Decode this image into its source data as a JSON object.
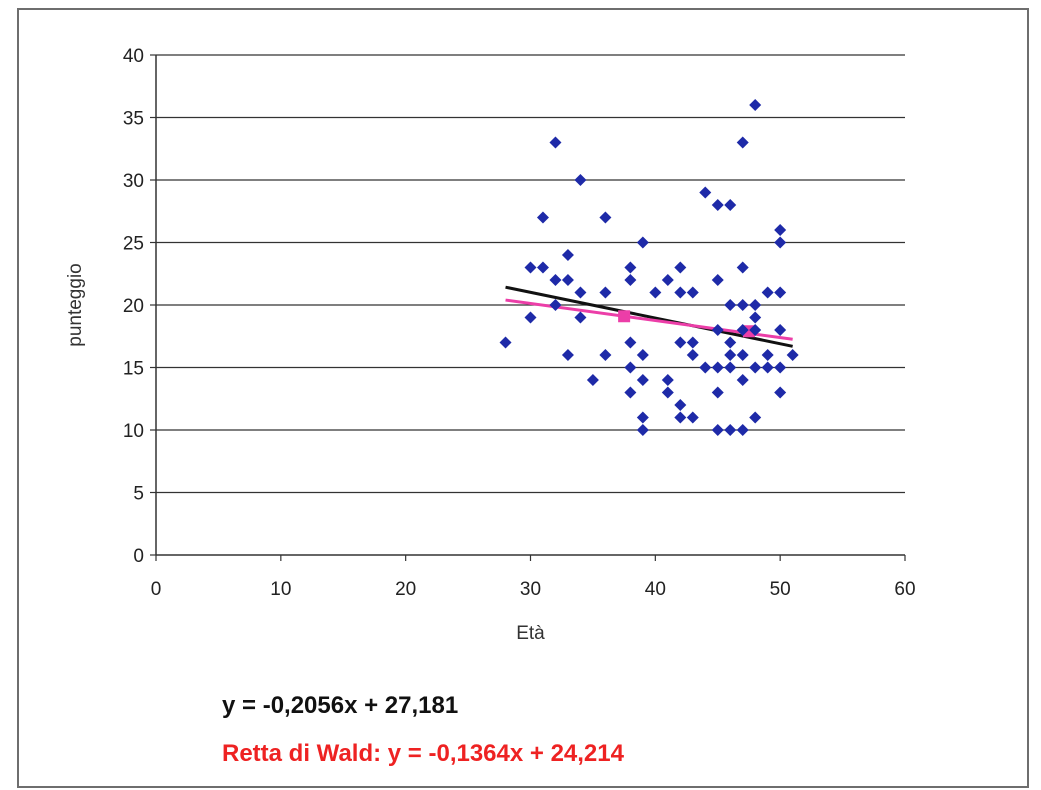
{
  "chart_data": {
    "type": "scatter",
    "xlabel": "Età",
    "ylabel": "punteggio",
    "xlim": [
      0,
      60
    ],
    "ylim": [
      0,
      40
    ],
    "x_ticks": [
      0,
      10,
      20,
      30,
      40,
      50,
      60
    ],
    "y_ticks": [
      0,
      5,
      10,
      15,
      20,
      25,
      30,
      35,
      40
    ],
    "grid": "horizontal",
    "colors": {
      "points": "#1e2aa8",
      "ols_line": "#111111",
      "wald_line": "#ec3ea8",
      "wald_text": "#ee2222",
      "gridline": "#333333"
    },
    "series": [
      {
        "marker": "diamond",
        "points": [
          [
            28,
            17
          ],
          [
            30,
            23
          ],
          [
            30,
            19
          ],
          [
            31,
            23
          ],
          [
            31,
            27
          ],
          [
            32,
            33
          ],
          [
            32,
            22
          ],
          [
            32,
            20
          ],
          [
            33,
            24
          ],
          [
            33,
            22
          ],
          [
            33,
            16
          ],
          [
            34,
            30
          ],
          [
            34,
            21
          ],
          [
            34,
            19
          ],
          [
            35,
            14
          ],
          [
            36,
            27
          ],
          [
            36,
            21
          ],
          [
            36,
            16
          ],
          [
            38,
            23
          ],
          [
            38,
            22
          ],
          [
            38,
            17
          ],
          [
            38,
            15
          ],
          [
            38,
            13
          ],
          [
            39,
            25
          ],
          [
            39,
            16
          ],
          [
            39,
            14
          ],
          [
            39,
            11
          ],
          [
            39,
            10
          ],
          [
            40,
            21
          ],
          [
            41,
            22
          ],
          [
            41,
            14
          ],
          [
            41,
            13
          ],
          [
            42,
            23
          ],
          [
            42,
            21
          ],
          [
            42,
            17
          ],
          [
            42,
            12
          ],
          [
            42,
            11
          ],
          [
            43,
            21
          ],
          [
            43,
            17
          ],
          [
            43,
            16
          ],
          [
            43,
            11
          ],
          [
            44,
            29
          ],
          [
            44,
            15
          ],
          [
            45,
            28
          ],
          [
            45,
            22
          ],
          [
            45,
            18
          ],
          [
            45,
            15
          ],
          [
            45,
            13
          ],
          [
            45,
            10
          ],
          [
            46,
            28
          ],
          [
            46,
            20
          ],
          [
            46,
            17
          ],
          [
            46,
            16
          ],
          [
            46,
            15
          ],
          [
            46,
            10
          ],
          [
            47,
            33
          ],
          [
            47,
            23
          ],
          [
            47,
            20
          ],
          [
            47,
            18
          ],
          [
            47,
            16
          ],
          [
            47,
            14
          ],
          [
            47,
            10
          ],
          [
            48,
            36
          ],
          [
            48,
            20
          ],
          [
            48,
            19
          ],
          [
            48,
            18
          ],
          [
            48,
            15
          ],
          [
            48,
            11
          ],
          [
            49,
            21
          ],
          [
            49,
            16
          ],
          [
            49,
            15
          ],
          [
            50,
            26
          ],
          [
            50,
            25
          ],
          [
            50,
            21
          ],
          [
            50,
            18
          ],
          [
            50,
            15
          ],
          [
            50,
            13
          ],
          [
            51,
            16
          ]
        ]
      }
    ],
    "trendlines": [
      {
        "x_range": [
          28,
          51
        ],
        "slope": -0.2056,
        "intercept": 27.181,
        "label": "y = -0,2056x + 27,181"
      },
      {
        "x_range": [
          28,
          51
        ],
        "slope": -0.1364,
        "intercept": 24.214,
        "label": "Retta di Wald: y = -0,1364x + 24,214",
        "group_means": [
          [
            37.5,
            19.1
          ],
          [
            47.5,
            17.9
          ]
        ]
      }
    ]
  }
}
